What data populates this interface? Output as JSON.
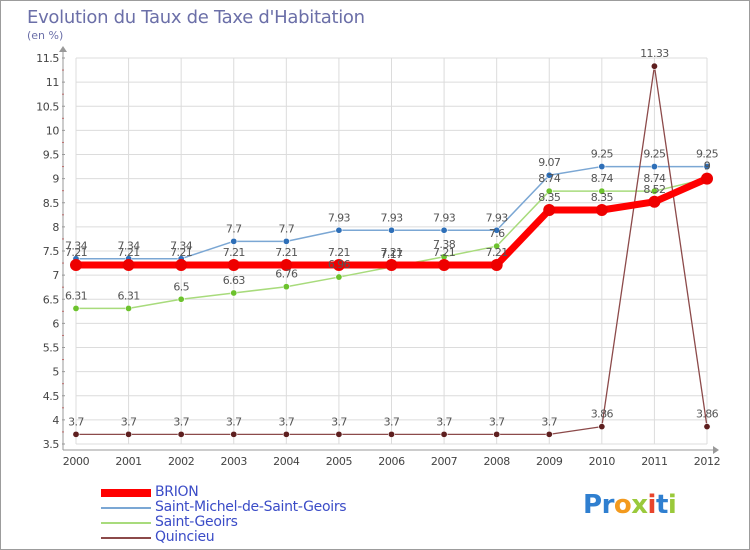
{
  "title": "Evolution du Taux de Taxe d'Habitation",
  "unit": "(en %)",
  "logo": {
    "letters": [
      "P",
      "r",
      "o",
      "x",
      "i",
      "t",
      "i"
    ],
    "colors": [
      "#2f7fd0",
      "#2f7fd0",
      "#f39a1e",
      "#9ac93b",
      "#e8452c",
      "#2f7fd0",
      "#9ac93b"
    ]
  },
  "chart_data": {
    "type": "line",
    "title": "Evolution du Taux de Taxe d'Habitation",
    "ylabel": "(en %)",
    "xlabel": "",
    "x": [
      "2000",
      "2001",
      "2002",
      "2003",
      "2004",
      "2005",
      "2006",
      "2007",
      "2008",
      "2009",
      "2010",
      "2011",
      "2012"
    ],
    "ylim": [
      3.5,
      11.5
    ],
    "yticks": [
      "3.5",
      "4",
      "4.5",
      "5",
      "5.5",
      "6",
      "6.5",
      "7",
      "7.5",
      "8",
      "8.5",
      "9",
      "9.5",
      "10",
      "10.5",
      "11",
      "11.5"
    ],
    "grid": "both",
    "legend_position": "bottom-left",
    "series": [
      {
        "name": "Saint-Michel-de-Saint-Geoirs",
        "color": "#7ba7d4",
        "marker": "#2e6fb8",
        "width": 1.5,
        "values": [
          7.34,
          7.34,
          7.34,
          7.7,
          7.7,
          7.93,
          7.93,
          7.93,
          7.93,
          9.07,
          9.25,
          9.25,
          9.25
        ],
        "labels": [
          "7.34",
          "7.34",
          "7.34",
          "7.7",
          "7.7",
          "7.93",
          "7.93",
          "7.93",
          "7.93",
          "9.07",
          "9.25",
          "9.25",
          "9.25"
        ]
      },
      {
        "name": "Saint-Geoirs",
        "color": "#a8db7c",
        "marker": "#6cc22d",
        "width": 1.5,
        "values": [
          6.31,
          6.31,
          6.5,
          6.63,
          6.76,
          6.96,
          7.17,
          7.38,
          7.6,
          8.74,
          8.74,
          8.74,
          9.0
        ],
        "labels": [
          "6.31",
          "6.31",
          "6.5",
          "6.63",
          "6.76",
          "6.96",
          "7.17",
          "7.38",
          "7.6",
          "8.74",
          "8.74",
          "8.74",
          "9"
        ]
      },
      {
        "name": "Quincieu",
        "color": "#8c4a4a",
        "marker": "#5e1f1f",
        "width": 1.3,
        "values": [
          3.7,
          3.7,
          3.7,
          3.7,
          3.7,
          3.7,
          3.7,
          3.7,
          3.7,
          3.7,
          3.86,
          11.33,
          3.86
        ],
        "labels": [
          "3.7",
          "3.7",
          "3.7",
          "3.7",
          "3.7",
          "3.7",
          "3.7",
          "3.7",
          "3.7",
          "3.7",
          "3.86",
          "11.33",
          "3.86"
        ]
      },
      {
        "name": "BRION",
        "color": "#ff0000",
        "marker": "#ee0000",
        "width": 7,
        "values": [
          7.21,
          7.21,
          7.21,
          7.21,
          7.21,
          7.21,
          7.21,
          7.21,
          7.21,
          8.35,
          8.35,
          8.52,
          9.0
        ],
        "labels": [
          "7.21",
          "7.21",
          "7.21",
          "7.21",
          "7.21",
          "7.21",
          "7.21",
          "7.21",
          "7.21",
          "8.35",
          "8.35",
          "8.52",
          "9"
        ]
      }
    ],
    "legend": [
      {
        "name": "BRION",
        "color": "#ff0000",
        "thickness": 8
      },
      {
        "name": "Saint-Michel-de-Saint-Geoirs",
        "color": "#7ba7d4",
        "thickness": 2
      },
      {
        "name": "Saint-Geoirs",
        "color": "#a8db7c",
        "thickness": 2
      },
      {
        "name": "Quincieu",
        "color": "#8c4a4a",
        "thickness": 2
      }
    ]
  }
}
